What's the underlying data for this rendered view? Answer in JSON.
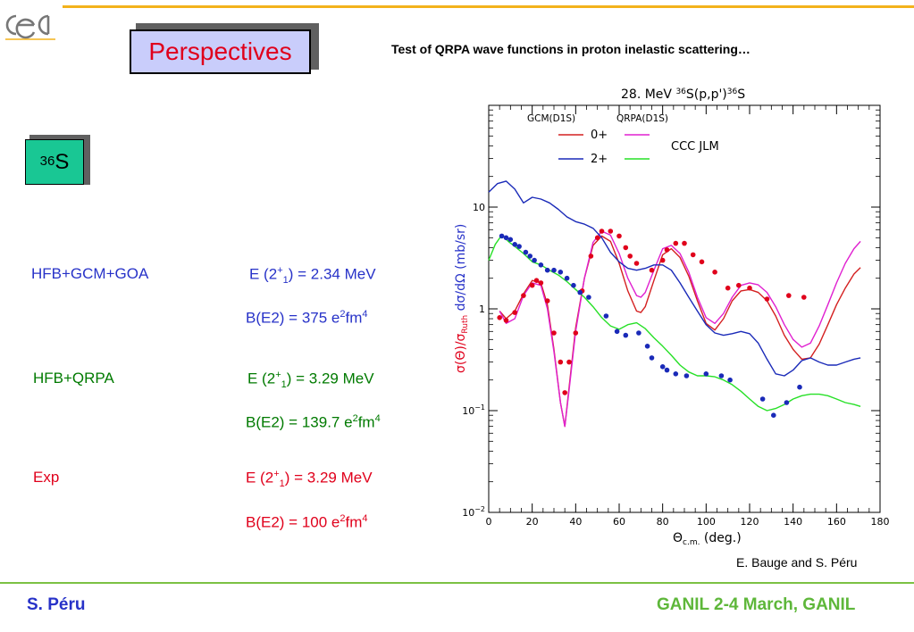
{
  "slide": {
    "title": "Perspectives",
    "subtitle": "Test of QRPA wave functions in proton inelastic scattering…",
    "isotope_mass": "36",
    "isotope_symbol": "S",
    "credit": "E. Bauge and S. Péru",
    "footer_left": "S. Péru",
    "footer_right": "GANIL 2-4 March, GANIL",
    "colors": {
      "gcm": "#2732c8",
      "qrpa": "#007a00",
      "exp": "#e0001b",
      "accent": "#f3b21b",
      "footer_rule": "#7cc143"
    }
  },
  "models": [
    {
      "name": "HFB+GCM+GOA",
      "e_prefix": "E (2",
      "e_sup": "+",
      "e_sub": "1",
      "e_value": ") = 2.34 MeV",
      "b_prefix": "B(E2) = 375 e",
      "b_sup1": "2",
      "b_mid": "fm",
      "b_sup2": "4"
    },
    {
      "name": "HFB+QRPA",
      "e_prefix": "E (2",
      "e_sup": "+",
      "e_sub": "1",
      "e_value": ") = 3.29 MeV",
      "b_prefix": "B(E2) = 139.7 e",
      "b_sup1": "2",
      "b_mid": "fm",
      "b_sup2": "4"
    },
    {
      "name": "Exp",
      "e_prefix": "E (2",
      "e_sup": "+",
      "e_sub": "1",
      "e_value": ") =  3.29 MeV",
      "b_prefix": "B(E2) = 100 e",
      "b_sup1": "2",
      "b_mid": "fm",
      "b_sup2": "4"
    }
  ],
  "chart_data": {
    "type": "line",
    "title_parts": [
      "28. MeV ",
      "36",
      "S(p,p')",
      "36",
      "S"
    ],
    "xlabel_parts": [
      "Θ",
      "c.m.",
      " (deg.)"
    ],
    "ylabel_parts": [
      "σ(Θ)/σ",
      "Ruth",
      " dσ/dΩ (mb/sr)"
    ],
    "xlim": [
      0,
      180
    ],
    "ylim": [
      0.01,
      100
    ],
    "yscale": "log",
    "xticks": [
      "0",
      "20",
      "40",
      "60",
      "80",
      "100",
      "120",
      "140",
      "160",
      "180"
    ],
    "yticks": [
      {
        "base": "10",
        "exp": "−2"
      },
      {
        "base": "10",
        "exp": "−1"
      },
      {
        "base": "1",
        "exp": ""
      },
      {
        "base": "10",
        "exp": ""
      }
    ],
    "legend": {
      "col1": "GCM(D1S)",
      "col2": "QRPA(D1S)",
      "row1": "0+",
      "row2": "2+",
      "side": "CCC JLM",
      "position": "top-left"
    },
    "series": [
      {
        "key": "gcm0",
        "color": "#d42020",
        "x": [
          5,
          8,
          12,
          16,
          20,
          24,
          27,
          30,
          33,
          35,
          37,
          40,
          44,
          48,
          52,
          56,
          60,
          64,
          68,
          70,
          72,
          76,
          80,
          84,
          88,
          92,
          96,
          100,
          104,
          108,
          112,
          116,
          120,
          124,
          128,
          132,
          136,
          140,
          144,
          148,
          152,
          156,
          160,
          164,
          168,
          171
        ],
        "y": [
          0.95,
          0.8,
          0.95,
          1.4,
          1.9,
          1.8,
          1.1,
          0.4,
          0.12,
          0.07,
          0.17,
          0.65,
          2.0,
          4.2,
          5.2,
          4.6,
          2.8,
          1.5,
          0.95,
          0.92,
          1.05,
          1.9,
          3.4,
          3.9,
          3.2,
          2.1,
          1.2,
          0.72,
          0.62,
          0.8,
          1.2,
          1.5,
          1.55,
          1.45,
          1.2,
          0.85,
          0.55,
          0.4,
          0.32,
          0.33,
          0.45,
          0.7,
          1.1,
          1.6,
          2.2,
          2.55
        ]
      },
      {
        "key": "qrpa0",
        "color": "#e020d0",
        "x": [
          5,
          8,
          12,
          16,
          20,
          24,
          27,
          30,
          33,
          35,
          37,
          40,
          44,
          48,
          52,
          56,
          60,
          64,
          68,
          70,
          72,
          76,
          80,
          84,
          88,
          92,
          96,
          100,
          104,
          108,
          112,
          116,
          120,
          124,
          128,
          132,
          136,
          140,
          144,
          148,
          152,
          156,
          160,
          164,
          168,
          171
        ],
        "y": [
          0.95,
          0.72,
          0.8,
          1.35,
          1.8,
          1.7,
          1.0,
          0.38,
          0.12,
          0.07,
          0.16,
          0.6,
          2.0,
          4.5,
          5.8,
          5.3,
          3.5,
          2.0,
          1.35,
          1.3,
          1.45,
          2.4,
          3.9,
          4.2,
          3.5,
          2.3,
          1.3,
          0.82,
          0.72,
          0.9,
          1.3,
          1.7,
          1.8,
          1.72,
          1.45,
          1.05,
          0.7,
          0.5,
          0.42,
          0.46,
          0.68,
          1.1,
          1.8,
          2.8,
          3.9,
          4.6
        ]
      },
      {
        "key": "gcm2",
        "color": "#1a2ab8",
        "x": [
          0,
          4,
          8,
          12,
          16,
          20,
          24,
          28,
          32,
          36,
          40,
          44,
          48,
          52,
          56,
          60,
          64,
          68,
          72,
          76,
          80,
          84,
          88,
          92,
          96,
          100,
          104,
          108,
          112,
          116,
          120,
          124,
          128,
          132,
          136,
          140,
          144,
          148,
          152,
          156,
          160,
          164,
          168,
          171
        ],
        "y": [
          14,
          17,
          18,
          15,
          11,
          12.5,
          12,
          11,
          9.5,
          8,
          7.2,
          6.8,
          6.2,
          5.0,
          3.6,
          2.9,
          2.5,
          2.4,
          2.5,
          2.7,
          2.7,
          2.4,
          1.8,
          1.3,
          0.95,
          0.7,
          0.58,
          0.55,
          0.57,
          0.6,
          0.57,
          0.46,
          0.32,
          0.23,
          0.22,
          0.25,
          0.31,
          0.33,
          0.3,
          0.28,
          0.28,
          0.3,
          0.32,
          0.33
        ]
      },
      {
        "key": "qrpa2",
        "color": "#27e027",
        "x": [
          0,
          3,
          6,
          9,
          12,
          16,
          20,
          24,
          28,
          32,
          36,
          40,
          44,
          48,
          52,
          56,
          60,
          64,
          68,
          72,
          76,
          80,
          84,
          88,
          92,
          96,
          100,
          104,
          108,
          112,
          116,
          120,
          124,
          128,
          132,
          136,
          140,
          144,
          148,
          152,
          156,
          160,
          164,
          168,
          171
        ],
        "y": [
          3.0,
          4.3,
          5.3,
          4.6,
          4.1,
          3.5,
          2.9,
          2.7,
          2.4,
          2.15,
          1.85,
          1.55,
          1.3,
          1.05,
          0.82,
          0.68,
          0.63,
          0.7,
          0.73,
          0.64,
          0.52,
          0.43,
          0.35,
          0.28,
          0.24,
          0.22,
          0.22,
          0.215,
          0.2,
          0.18,
          0.155,
          0.13,
          0.11,
          0.1,
          0.105,
          0.115,
          0.13,
          0.14,
          0.145,
          0.145,
          0.14,
          0.13,
          0.12,
          0.115,
          0.11
        ]
      },
      {
        "key": "exp0",
        "type": "scatter",
        "color": "#e0001b",
        "x": [
          5,
          8,
          12,
          16,
          20,
          22,
          24,
          27,
          30,
          33,
          35,
          37,
          40,
          43,
          47,
          50,
          52,
          56,
          60,
          63,
          65,
          68,
          75,
          80,
          82,
          86,
          90,
          94,
          98,
          104,
          110,
          115,
          120,
          128,
          138,
          145
        ],
        "y": [
          0.82,
          0.77,
          0.92,
          1.35,
          1.7,
          1.9,
          1.8,
          1.2,
          0.58,
          0.3,
          0.15,
          0.3,
          0.58,
          1.5,
          3.3,
          5.0,
          5.8,
          5.8,
          5.2,
          4.0,
          3.3,
          2.8,
          2.4,
          3.0,
          3.8,
          4.4,
          4.4,
          3.4,
          2.9,
          2.3,
          1.6,
          1.7,
          1.6,
          1.25,
          1.35,
          1.3
        ]
      },
      {
        "key": "exp2",
        "type": "scatter",
        "color": "#1a2ab8",
        "x": [
          6,
          8,
          10,
          12,
          14,
          17,
          19,
          21,
          24,
          27,
          30,
          33,
          36,
          39,
          42,
          46,
          54,
          59,
          63,
          69,
          73,
          75,
          80,
          82,
          86,
          91,
          100,
          107,
          111,
          126,
          131,
          137,
          143
        ],
        "y": [
          5.2,
          5.0,
          4.8,
          4.3,
          4.1,
          3.6,
          3.3,
          3.0,
          2.7,
          2.4,
          2.4,
          2.3,
          2.0,
          1.7,
          1.45,
          1.3,
          0.85,
          0.6,
          0.55,
          0.58,
          0.43,
          0.33,
          0.27,
          0.25,
          0.23,
          0.22,
          0.23,
          0.22,
          0.2,
          0.13,
          0.09,
          0.12,
          0.17
        ]
      }
    ]
  }
}
